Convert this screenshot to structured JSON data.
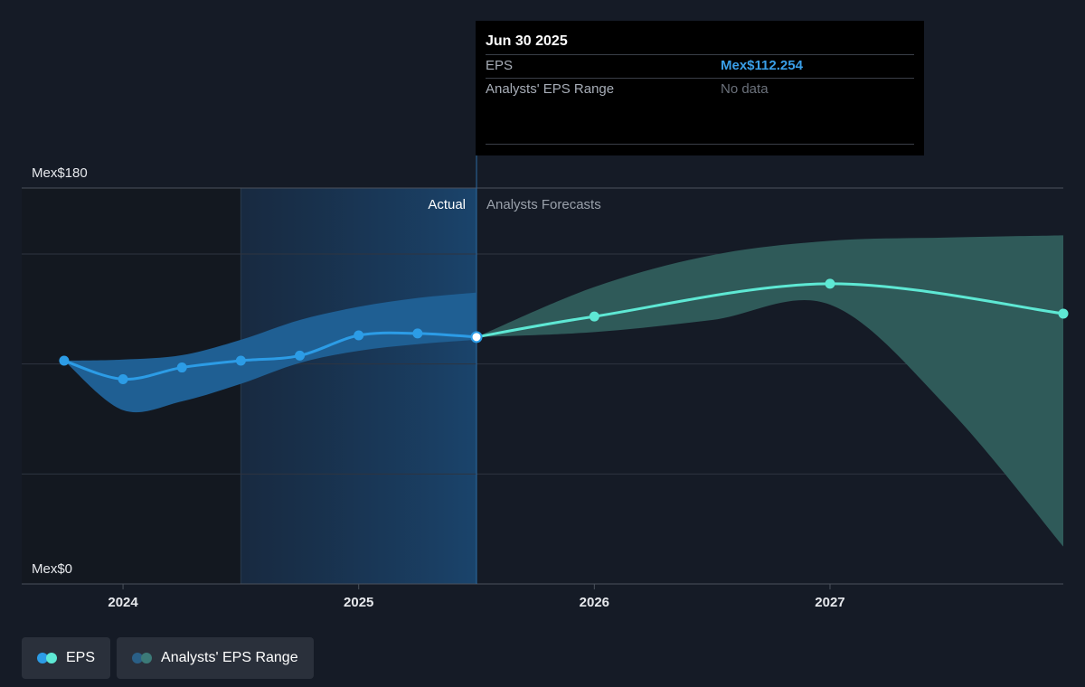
{
  "colors": {
    "background": "#151b26",
    "eps_actual": "#2c9ce6",
    "eps_forecast": "#5ee8d4",
    "range_actual": "#1f5f93",
    "range_forecast": "#2f5a59",
    "grid": "#2e3440",
    "axis_text": "#e6e8ec"
  },
  "tooltip": {
    "date": "Jun 30 2025",
    "rows": [
      {
        "label": "EPS",
        "value": "Mex$112.254"
      },
      {
        "label": "Analysts' EPS Range",
        "value": "No data"
      }
    ]
  },
  "legend": [
    {
      "label": "EPS",
      "icon": "eps-dots-icon"
    },
    {
      "label": "Analysts' EPS Range",
      "icon": "range-dots-icon"
    }
  ],
  "chart_data": {
    "type": "line",
    "ylabel_top": "Mex$180",
    "ylabel_bottom": "Mex$0",
    "ylim": [
      0,
      180
    ],
    "xlim": [
      2023.57,
      2027.99
    ],
    "x_ticks": [
      {
        "label": "2024",
        "x": 2024.0
      },
      {
        "label": "2025",
        "x": 2025.0
      },
      {
        "label": "2026",
        "x": 2026.0
      },
      {
        "label": "2027",
        "x": 2027.0
      }
    ],
    "y_grid": [
      0,
      50,
      100,
      150,
      180
    ],
    "region_labels": {
      "actual": "Actual",
      "forecast": "Analysts Forecasts"
    },
    "past_region_start": 2024.5,
    "divider_x": 2025.5,
    "series": [
      {
        "name": "EPS",
        "segment": "actual",
        "x": [
          2023.75,
          2024.0,
          2024.25,
          2024.5,
          2024.75,
          2025.0,
          2025.25,
          2025.5
        ],
        "values": [
          101.5,
          93.1,
          98.4,
          101.5,
          103.8,
          113.0,
          113.9,
          112.25
        ]
      },
      {
        "name": "EPS",
        "segment": "forecast",
        "x": [
          2025.5,
          2026.0,
          2027.0,
          2027.99
        ],
        "values": [
          112.25,
          121.6,
          136.5,
          122.9
        ]
      }
    ],
    "range_actual": {
      "x": [
        2023.75,
        2024.0,
        2024.25,
        2024.5,
        2024.75,
        2025.0,
        2025.25,
        2025.5
      ],
      "low": [
        101.5,
        79.0,
        83.0,
        91.0,
        100.5,
        106.0,
        109.0,
        111.0
      ],
      "high": [
        101.5,
        102.0,
        104.0,
        111.0,
        120.0,
        126.0,
        130.0,
        132.5
      ]
    },
    "range_forecast": {
      "x": [
        2025.5,
        2026.0,
        2026.5,
        2027.0,
        2027.5,
        2027.99
      ],
      "low": [
        112.25,
        114.5,
        120.0,
        127.0,
        80.0,
        17.0
      ],
      "high": [
        112.25,
        135.0,
        149.5,
        156.0,
        157.5,
        158.5
      ]
    }
  }
}
